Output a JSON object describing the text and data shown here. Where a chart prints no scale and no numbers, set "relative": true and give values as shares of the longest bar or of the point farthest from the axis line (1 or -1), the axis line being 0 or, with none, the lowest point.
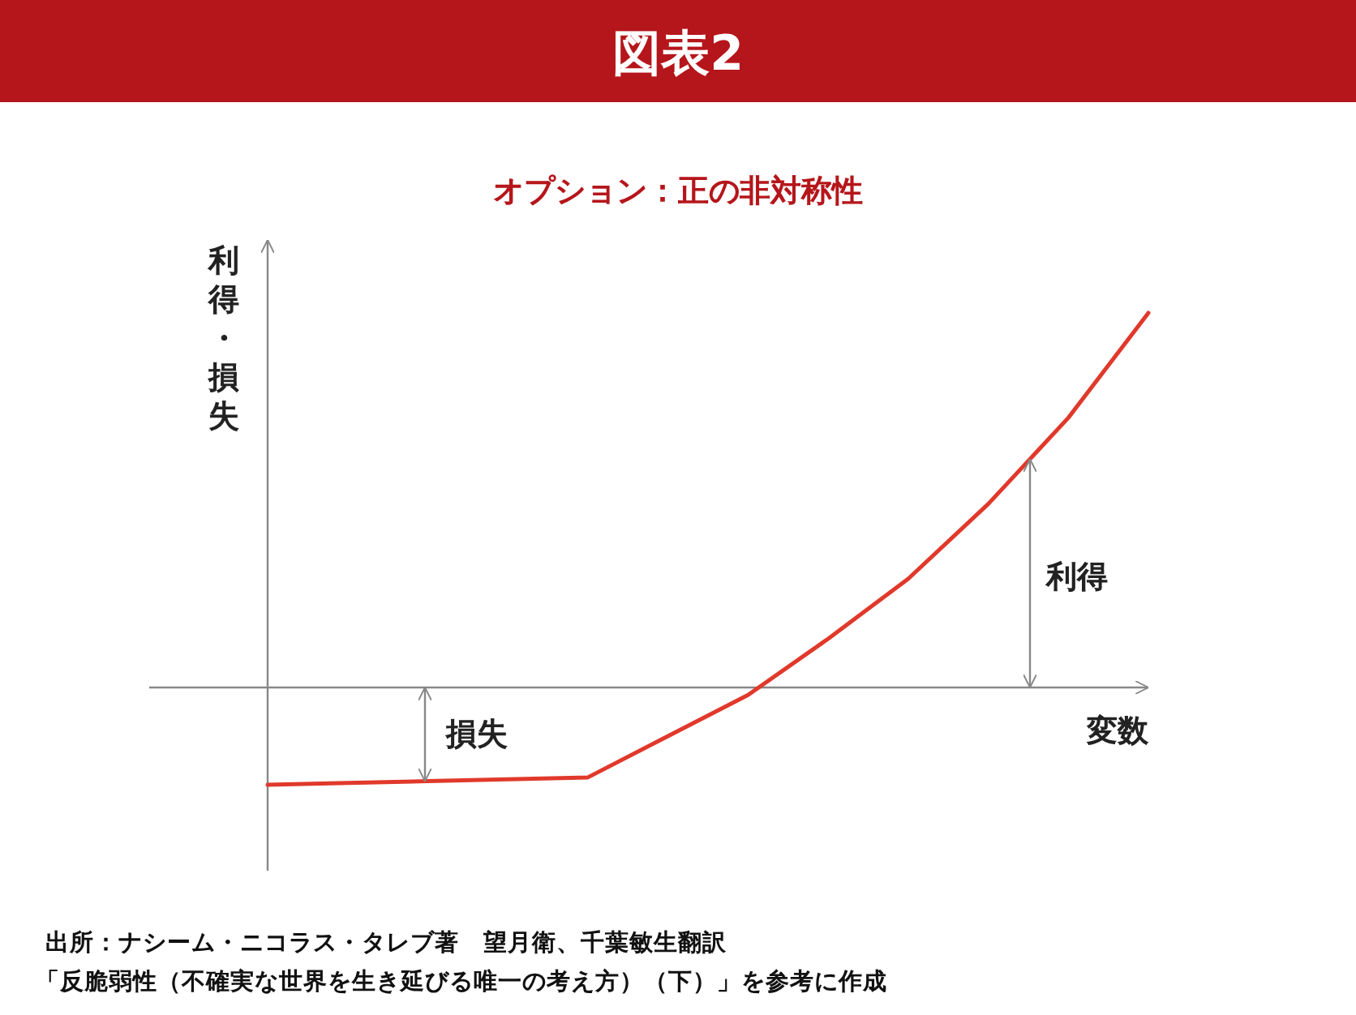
{
  "chart_data": {
    "type": "line",
    "title": "図表2",
    "subtitle": "オプション：正の非対称性",
    "xlabel": "変数",
    "ylabel": "利得・損失",
    "relative": true,
    "marker": "none",
    "line_style": "solid",
    "categories": [
      null,
      null,
      null,
      null,
      null,
      null,
      null,
      null,
      null,
      null,
      null,
      null
    ],
    "series": [
      {
        "color": "#e0392b",
        "values": [
          -0.26,
          -0.255,
          -0.25,
          -0.245,
          -0.24,
          -0.13,
          -0.02,
          0.13,
          0.29,
          0.49,
          0.72,
          1
        ]
      }
    ],
    "annotations": [
      "利得",
      "損失",
      "出所：ナシーム・ニコラス・タレブ著　望月衛、千葉敏生翻訳",
      "「反脆弱性（不確実な世界を生き延びる唯一の考え方）（下）」を参考に作成"
    ]
  }
}
